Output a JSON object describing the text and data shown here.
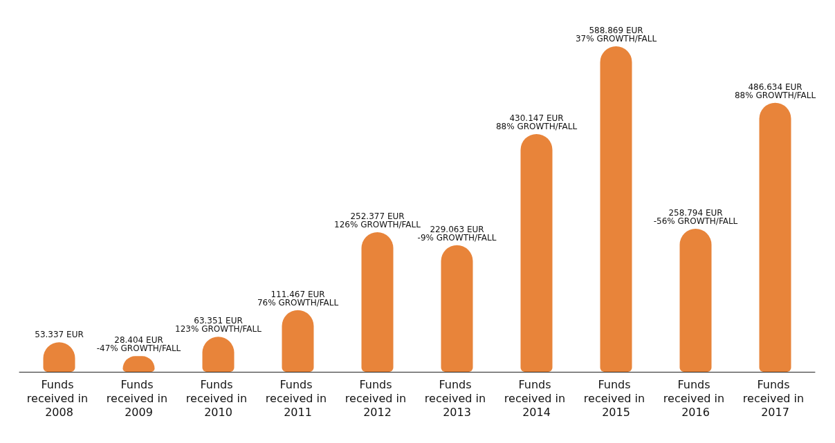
{
  "chart_data": {
    "type": "bar",
    "categories": [
      "Funds received in 2008",
      "Funds received in 2009",
      "Funds received in 2010",
      "Funds received in 2011",
      "Funds received in 2012",
      "Funds received in 2013",
      "Funds received in 2014",
      "Funds received in 2015",
      "Funds received in 2016",
      "Funds received in 2017"
    ],
    "values": [
      53337,
      28404,
      63351,
      111467,
      252377,
      229063,
      430147,
      588869,
      258794,
      486634
    ],
    "value_labels": [
      "53.337 EUR",
      "28.404 EUR\n-47% GROWTH/FALL",
      "63.351 EUR\n123% GROWTH/FALL",
      "111.467 EUR\n76% GROWTH/FALL",
      "252.377 EUR\n126% GROWTH/FALL",
      "229.063 EUR\n-9% GROWTH/FALL",
      "430.147 EUR\n88% GROWTH/FALL",
      "588.869 EUR\n37% GROWTH/FALL",
      "258.794 EUR\n-56% GROWTH/FALL",
      "486.634 EUR\n88% GROWTH/FALL"
    ],
    "color": "#e8843a"
  }
}
